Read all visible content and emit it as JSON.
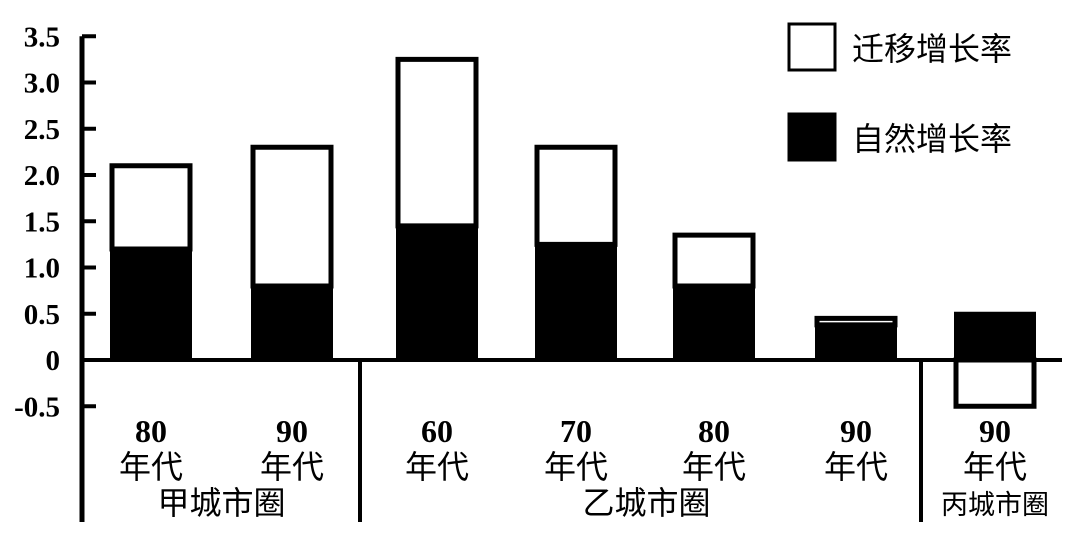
{
  "chart_data": {
    "type": "bar",
    "stacked": true,
    "title": "",
    "xlabel": "",
    "ylabel": "",
    "ylim": [
      -0.5,
      3.5
    ],
    "yticks": [
      "3.5",
      "3.0",
      "2.5",
      "2.0",
      "1.5",
      "1.0",
      "0.5",
      "0",
      "-0.5"
    ],
    "ytick_values": [
      3.5,
      3.0,
      2.5,
      2.0,
      1.5,
      1.0,
      0.5,
      0,
      -0.5
    ],
    "grid": false,
    "legend_position": "top-right",
    "categories": [
      {
        "decade": "80",
        "unit": "年代",
        "group": "甲城市圈"
      },
      {
        "decade": "90",
        "unit": "年代",
        "group": "甲城市圈"
      },
      {
        "decade": "60",
        "unit": "年代",
        "group": "乙城市圈"
      },
      {
        "decade": "70",
        "unit": "年代",
        "group": "乙城市圈"
      },
      {
        "decade": "80",
        "unit": "年代",
        "group": "乙城市圈"
      },
      {
        "decade": "90",
        "unit": "年代",
        "group": "乙城市圈"
      },
      {
        "decade": "90",
        "unit": "年代",
        "group": "丙城市圈"
      }
    ],
    "groups": [
      {
        "name": "甲城市圈",
        "count": 2
      },
      {
        "name": "乙城市圈",
        "count": 4
      },
      {
        "name": "丙城市圈",
        "count": 1
      }
    ],
    "series": [
      {
        "name": "自然增长率",
        "color": "#000000",
        "values": [
          1.2,
          0.8,
          1.45,
          1.25,
          0.8,
          0.38,
          0.5
        ]
      },
      {
        "name": "迁移增长率",
        "color": "#ffffff",
        "values": [
          0.9,
          1.5,
          1.8,
          1.05,
          0.55,
          0.07,
          -0.5
        ]
      }
    ]
  }
}
